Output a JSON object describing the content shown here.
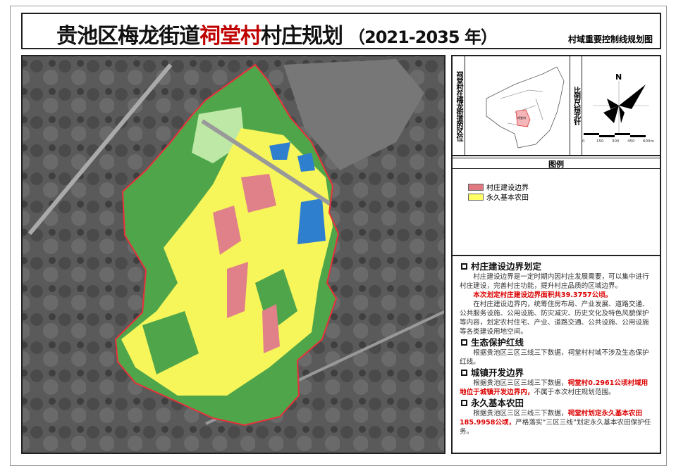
{
  "title": {
    "prefix": "贵池区梅龙街道",
    "village": "祠堂村",
    "suffix": "村庄规划",
    "years": "（2021-2035 年）",
    "subtitle": "村域重要控制线规划图"
  },
  "locator": {
    "label": "祠堂村在梅龙街道的区位",
    "village_tag": "祠堂村"
  },
  "compass": {
    "label": "比例尺指北针",
    "north": "N",
    "scale_ticks": [
      "0",
      "150",
      "300",
      "450",
      "600m"
    ]
  },
  "legend": {
    "header": "图例",
    "items": [
      {
        "label": "村庄建设边界",
        "color": "#e07a80"
      },
      {
        "label": "永久基本农田",
        "color": "#ffff66"
      }
    ]
  },
  "colors": {
    "forest": "#4fa64a",
    "farmland": "#f6f55a",
    "village": "#e08088",
    "water": "#2f7fcf",
    "boundary": "#e8303a",
    "light_green": "#bde8a6"
  },
  "sections": [
    {
      "title": "村庄建设边界划定",
      "p1": "村庄建设边界是一定时期内因村庄发展需要，可以集中进行村庄建设，完善村庄功能，提升村庄品质的区域边界。",
      "p1_red": "本次划定村庄建设边界面积共39.3757公顷。",
      "p2": "在村庄建设边界内，统筹住房布局、产业发展、道路交通、 公共服务设施、公用设施、防灾减灾、历史文化及特色风貌保护等内容，划定农村住宅、产业、道路交通、公共设施、公用设施等各类建设用地空间。"
    },
    {
      "title": "生态保护红线",
      "p1": "根据贵池区三区三线三下数据，祠堂村村域不涉及生态保护红线。"
    },
    {
      "title": "城镇开发边界",
      "p1": "根据贵池区三区三线三下数据，",
      "p1_red": "祠堂村0.2961公顷村域用地位于城镇开发边界内，",
      "p1_tail": "不属于本次村庄规划范围。"
    },
    {
      "title": "永久基本农田",
      "p1": "根据贵池区三区三线三下数据，",
      "p1_red": "祠堂村划定永久基本农田185.9958公顷，",
      "p1_tail": "严格落实“三区三线”划定永久基本农田保护任务。"
    }
  ]
}
